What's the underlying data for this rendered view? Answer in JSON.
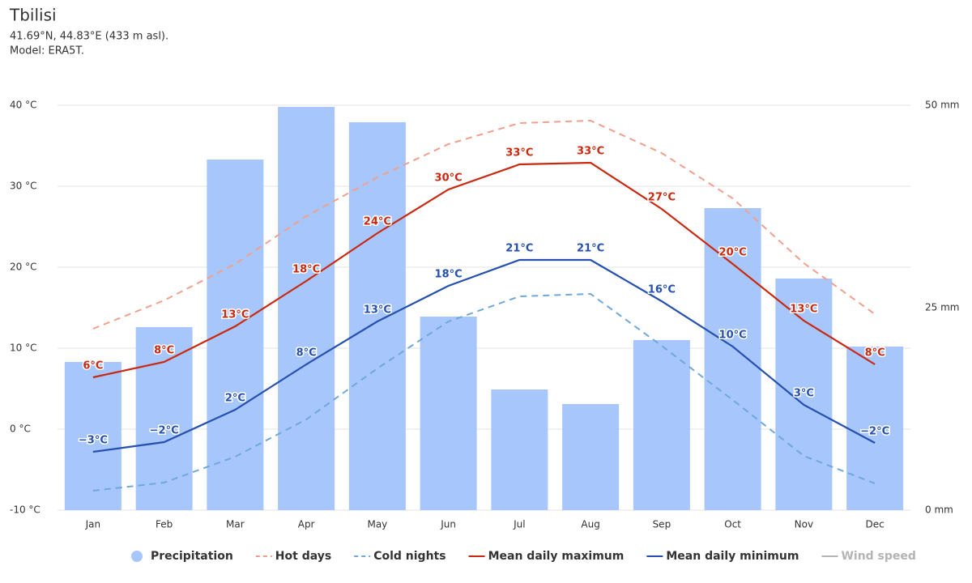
{
  "chart_data": {
    "type": "bar-line",
    "title": "Tbilisi",
    "subtitle": [
      "41.69°N, 44.83°E (433 m asl).",
      "Model: ERA5T."
    ],
    "categories": [
      "Jan",
      "Feb",
      "Mar",
      "Apr",
      "May",
      "Jun",
      "Jul",
      "Aug",
      "Sep",
      "Oct",
      "Nov",
      "Dec"
    ],
    "ylim": [
      -10,
      40
    ],
    "yticks": [
      {
        "value": -10,
        "label": "-10 °C"
      },
      {
        "value": 0,
        "label": "0 °C"
      },
      {
        "value": 10,
        "label": "10 °C"
      },
      {
        "value": 20,
        "label": "20 °C"
      },
      {
        "value": 30,
        "label": "30 °C"
      },
      {
        "value": 40,
        "label": "40 °C"
      }
    ],
    "y2lim": [
      0,
      50
    ],
    "y2ticks": [
      {
        "value": 0,
        "label": "0 mm"
      },
      {
        "value": 25,
        "label": "25 mm"
      },
      {
        "value": 50,
        "label": "50 mm"
      }
    ],
    "grid": true,
    "series": [
      {
        "name": "Precipitation",
        "type": "bar",
        "axis": "y2",
        "color": "#a7c6fb",
        "values": [
          18.3,
          22.6,
          43.3,
          49.8,
          47.9,
          23.9,
          14.9,
          13.1,
          21.0,
          37.3,
          28.6,
          20.2
        ]
      },
      {
        "name": "Hot days",
        "type": "line",
        "dash": true,
        "color": "#f0a08c",
        "values": [
          12.4,
          15.9,
          20.4,
          26.3,
          31.1,
          35.2,
          37.8,
          38.1,
          34.1,
          28.5,
          20.5,
          14.2
        ]
      },
      {
        "name": "Cold nights",
        "type": "line",
        "dash": true,
        "color": "#6fa8dc",
        "values": [
          -7.6,
          -6.6,
          -3.4,
          1.2,
          7.5,
          13.3,
          16.4,
          16.7,
          10.3,
          3.6,
          -3.3,
          -6.7
        ]
      },
      {
        "name": "Mean daily maximum",
        "type": "line",
        "dash": false,
        "color": "#c9290f",
        "values": [
          6.4,
          8.3,
          12.7,
          18.3,
          24.2,
          29.6,
          32.7,
          32.9,
          27.2,
          20.4,
          13.4,
          8.0
        ],
        "value_labels": [
          "6°C",
          "8°C",
          "13°C",
          "18°C",
          "24°C",
          "30°C",
          "33°C",
          "33°C",
          "27°C",
          "20°C",
          "13°C",
          "8°C"
        ]
      },
      {
        "name": "Mean daily minimum",
        "type": "line",
        "dash": false,
        "color": "#2550b0",
        "values": [
          -2.8,
          -1.6,
          2.4,
          8.0,
          13.3,
          17.7,
          20.9,
          20.9,
          15.8,
          10.2,
          3.0,
          -1.7
        ],
        "value_labels": [
          "−3°C",
          "−2°C",
          "2°C",
          "8°C",
          "13°C",
          "18°C",
          "21°C",
          "21°C",
          "16°C",
          "10°C",
          "3°C",
          "−2°C"
        ]
      }
    ],
    "legend_extra": [
      {
        "name": "Wind speed",
        "color": "#b4b4b4"
      }
    ]
  }
}
